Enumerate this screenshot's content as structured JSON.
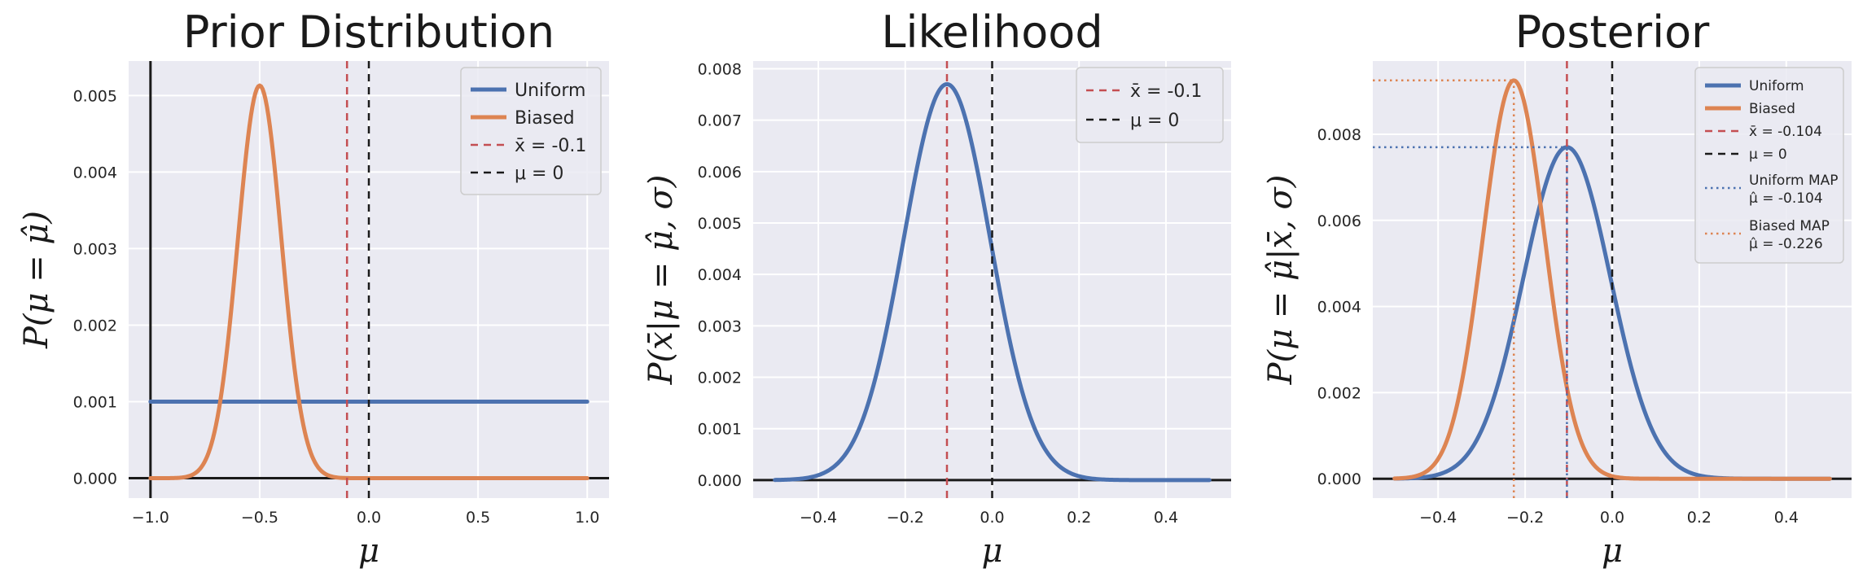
{
  "chart_data": [
    {
      "type": "line",
      "title": "Prior Distribution",
      "xlabel": "μ",
      "ylabel": "P(μ = μ̂)",
      "xlim": [
        -1.1,
        1.1
      ],
      "ylim": [
        -0.00026,
        0.00545
      ],
      "xticks": [
        -1.0,
        -0.5,
        0.0,
        0.5,
        1.0
      ],
      "xtick_labels": [
        "−1.0",
        "−0.5",
        "0.0",
        "0.5",
        "1.0"
      ],
      "yticks": [
        0.0,
        0.001,
        0.002,
        0.003,
        0.004,
        0.005
      ],
      "ytick_labels": [
        "0.000",
        "0.001",
        "0.002",
        "0.003",
        "0.004",
        "0.005"
      ],
      "grid": true,
      "axis_lines": {
        "y0": true,
        "xmin": -1.0
      },
      "series": [
        {
          "name": "Uniform",
          "kind": "uniform",
          "x": [
            -1.0,
            1.0
          ],
          "y": [
            0.001,
            0.001
          ],
          "color": "#4c72b0"
        },
        {
          "name": "Biased",
          "kind": "gaussian",
          "mean": -0.5,
          "sd": 0.1,
          "peak": 0.00513,
          "x_range": [
            -1.0,
            1.0
          ],
          "color": "#dd8452"
        }
      ],
      "vlines": [
        {
          "name": "x̄ = -0.1",
          "x": -0.1,
          "color": "#c44e52",
          "style": "dashed"
        },
        {
          "name": "μ = 0",
          "x": 0.0,
          "color": "#1a1a1a",
          "style": "dashed"
        }
      ],
      "legend": {
        "placement": "top-right",
        "entries": [
          {
            "label": "Uniform",
            "color": "#4c72b0",
            "style": "solid"
          },
          {
            "label": "Biased",
            "color": "#dd8452",
            "style": "solid"
          },
          {
            "label": "x̄ = -0.1",
            "color": "#c44e52",
            "style": "dashed"
          },
          {
            "label": "μ = 0",
            "color": "#1a1a1a",
            "style": "dashed"
          }
        ]
      }
    },
    {
      "type": "line",
      "title": "Likelihood",
      "xlabel": "μ",
      "ylabel": "P(x̄|μ = μ̂, σ)",
      "xlim": [
        -0.55,
        0.55
      ],
      "ylim": [
        -0.00035,
        0.00815
      ],
      "xticks": [
        -0.4,
        -0.2,
        0.0,
        0.2,
        0.4
      ],
      "xtick_labels": [
        "−0.4",
        "−0.2",
        "0.0",
        "0.2",
        "0.4"
      ],
      "yticks": [
        0.0,
        0.001,
        0.002,
        0.003,
        0.004,
        0.005,
        0.006,
        0.007,
        0.008
      ],
      "ytick_labels": [
        "0.000",
        "0.001",
        "0.002",
        "0.003",
        "0.004",
        "0.005",
        "0.006",
        "0.007",
        "0.008"
      ],
      "grid": true,
      "axis_lines": {
        "y0": true
      },
      "series": [
        {
          "name": "Likelihood",
          "kind": "gaussian",
          "mean": -0.104,
          "sd": 0.1,
          "peak": 0.0077,
          "x_range": [
            -0.5,
            0.5
          ],
          "color": "#4c72b0"
        }
      ],
      "vlines": [
        {
          "name": "x̄ = -0.1",
          "x": -0.104,
          "color": "#c44e52",
          "style": "dashed"
        },
        {
          "name": "μ = 0",
          "x": 0.0,
          "color": "#1a1a1a",
          "style": "dashed"
        }
      ],
      "legend": {
        "placement": "top-right",
        "entries": [
          {
            "label": "x̄ = -0.1",
            "color": "#c44e52",
            "style": "dashed"
          },
          {
            "label": "μ = 0",
            "color": "#1a1a1a",
            "style": "dashed"
          }
        ]
      }
    },
    {
      "type": "line",
      "title": "Posterior",
      "xlabel": "μ",
      "ylabel": "P(μ = μ̂|x̄, σ)",
      "xlim": [
        -0.55,
        0.55
      ],
      "ylim": [
        -0.00045,
        0.0097
      ],
      "xticks": [
        -0.4,
        -0.2,
        0.0,
        0.2,
        0.4
      ],
      "xtick_labels": [
        "−0.4",
        "−0.2",
        "0.0",
        "0.2",
        "0.4"
      ],
      "yticks": [
        0.0,
        0.002,
        0.004,
        0.006,
        0.008
      ],
      "ytick_labels": [
        "0.000",
        "0.002",
        "0.004",
        "0.006",
        "0.008"
      ],
      "grid": true,
      "axis_lines": {
        "y0": true
      },
      "series": [
        {
          "name": "Uniform",
          "kind": "gaussian",
          "mean": -0.104,
          "sd": 0.1,
          "peak": 0.0077,
          "x_range": [
            -0.5,
            0.5
          ],
          "color": "#4c72b0"
        },
        {
          "name": "Biased",
          "kind": "gaussian",
          "mean": -0.226,
          "sd": 0.071,
          "peak": 0.00925,
          "x_range": [
            -0.5,
            0.5
          ],
          "color": "#dd8452"
        }
      ],
      "vlines": [
        {
          "name": "x̄ = -0.104",
          "x": -0.104,
          "color": "#c44e52",
          "style": "dashed"
        },
        {
          "name": "μ = 0",
          "x": 0.0,
          "color": "#1a1a1a",
          "style": "dashed"
        },
        {
          "name": "Uniform MAP μ̂ = -0.104",
          "x": -0.104,
          "y_to": 0.0077,
          "color": "#4c72b0",
          "style": "dotted"
        },
        {
          "name": "Biased MAP μ̂ = -0.226",
          "x": -0.226,
          "y_to": 0.00925,
          "color": "#dd8452",
          "style": "dotted"
        }
      ],
      "hlines": [
        {
          "name": "Uniform MAP level",
          "y": 0.0077,
          "x_to": -0.104,
          "color": "#4c72b0",
          "style": "dotted"
        },
        {
          "name": "Biased MAP level",
          "y": 0.00925,
          "x_to": -0.226,
          "color": "#dd8452",
          "style": "dotted"
        }
      ],
      "legend": {
        "placement": "top-right",
        "entries": [
          {
            "label": "Uniform",
            "color": "#4c72b0",
            "style": "solid"
          },
          {
            "label": "Biased",
            "color": "#dd8452",
            "style": "solid"
          },
          {
            "label": "x̄ = -0.104",
            "color": "#c44e52",
            "style": "dashed"
          },
          {
            "label": "μ = 0",
            "color": "#1a1a1a",
            "style": "dashed"
          },
          {
            "label": "Uniform MAP",
            "label2": "μ̂ = -0.104",
            "color": "#4c72b0",
            "style": "dotted"
          },
          {
            "label": "Biased MAP",
            "label2": "μ̂ = -0.226",
            "color": "#dd8452",
            "style": "dotted"
          }
        ]
      }
    }
  ]
}
